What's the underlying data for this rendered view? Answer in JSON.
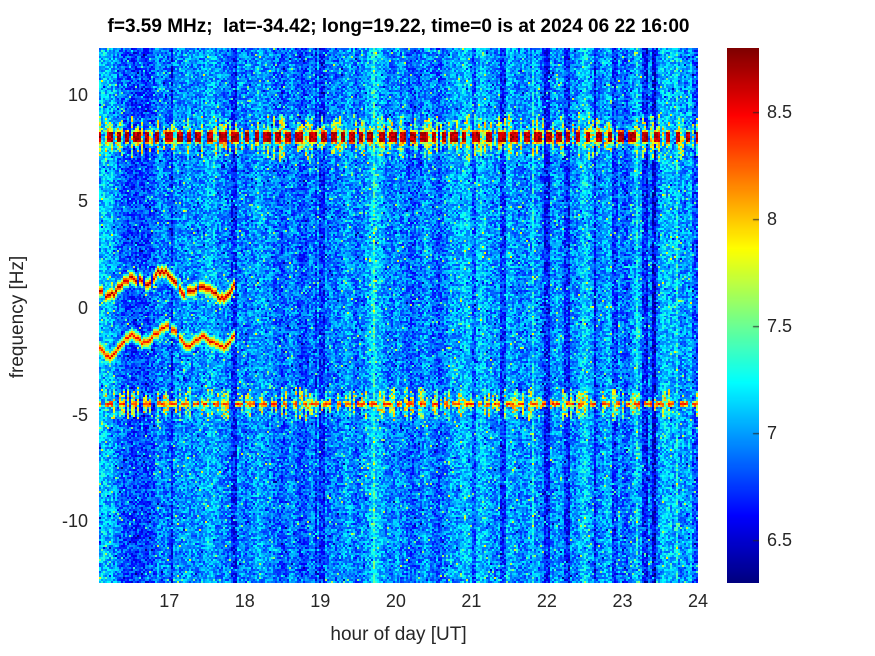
{
  "title": "f=3.59 MHz;  lat=-34.42; long=19.22, time=0 is at 2024 06 22 16:00",
  "axes": {
    "xlabel": "hour of day [UT]",
    "ylabel": "frequency [Hz]",
    "x_ticks": [
      17,
      18,
      19,
      20,
      21,
      22,
      23,
      24
    ],
    "y_ticks": [
      10,
      5,
      0,
      -5,
      -10
    ],
    "x_range": [
      16.07,
      24
    ],
    "y_range": [
      -12.9,
      12.2
    ]
  },
  "colorbar": {
    "ticks": [
      8.5,
      8,
      7.5,
      7,
      6.5
    ],
    "range": [
      6.3,
      8.8
    ],
    "colormap": "jet"
  },
  "colors": {
    "title_text": "#000000",
    "tick_text": "#262626",
    "background": "#ffffff",
    "heatmap_low": "#0000a0",
    "heatmap_high": "#8b0000"
  },
  "chart_data": {
    "type": "heatmap",
    "title": "f=3.59 MHz;  lat=-34.42; long=19.22, time=0 is at 2024 06 22 16:00",
    "xlabel": "hour of day [UT]",
    "ylabel": "frequency [Hz]",
    "x_range_hours_UT": [
      16.07,
      24
    ],
    "y_range_hz": [
      -12.9,
      12.2
    ],
    "x_tick_labels": [
      17,
      18,
      19,
      20,
      21,
      22,
      23,
      24
    ],
    "y_tick_labels": [
      10,
      5,
      0,
      -5,
      -10
    ],
    "colormap": "jet",
    "color_axis_range": [
      6.3,
      8.8
    ],
    "grid": false,
    "legend": "colorbar-right",
    "background_noise": {
      "mean_value": 6.95,
      "noise_amplitude": 0.5,
      "description": "blue speckled broadband noise with vertical column striping and occasional darker / brighter full-height columns"
    },
    "features": [
      {
        "kind": "horizontal_dashed_band",
        "frequency_hz": 8.05,
        "hours": [
          16.07,
          24
        ],
        "peak_value": 8.75,
        "thickness_hz": 0.5,
        "streak_halo_hz": 0.9,
        "streak_prob": 0.5,
        "description": "dark-red dashed horizontal line crossed by dense short vertical cyan/yellow/red streaks, persists all night"
      },
      {
        "kind": "horizontal_dashed_band",
        "frequency_hz": -4.5,
        "hours": [
          16.07,
          24
        ],
        "peak_value": 8.45,
        "thickness_hz": 0.25,
        "streak_halo_hz": 0.7,
        "streak_prob": 0.42,
        "description": "thinner red dotted horizontal line with vertical yellow-green streaks, persists all night"
      },
      {
        "kind": "wavy_trace",
        "frequency_hz": 1.15,
        "hours": [
          16.07,
          17.85
        ],
        "peak_value": 8.75,
        "wiggle_amplitude_hz": 0.45,
        "halo_hz": 0.5,
        "description": "meandering dark-red Doppler trace with yellow-green halo, fades after ~17.8 UT"
      },
      {
        "kind": "wavy_trace",
        "frequency_hz": -1.45,
        "hours": [
          16.07,
          17.85
        ],
        "peak_value": 8.6,
        "wiggle_amplitude_hz": 0.4,
        "halo_hz": 0.45,
        "description": "second meandering red trace below zero, mirrors upper trace, fades after ~17.8 UT"
      }
    ]
  }
}
